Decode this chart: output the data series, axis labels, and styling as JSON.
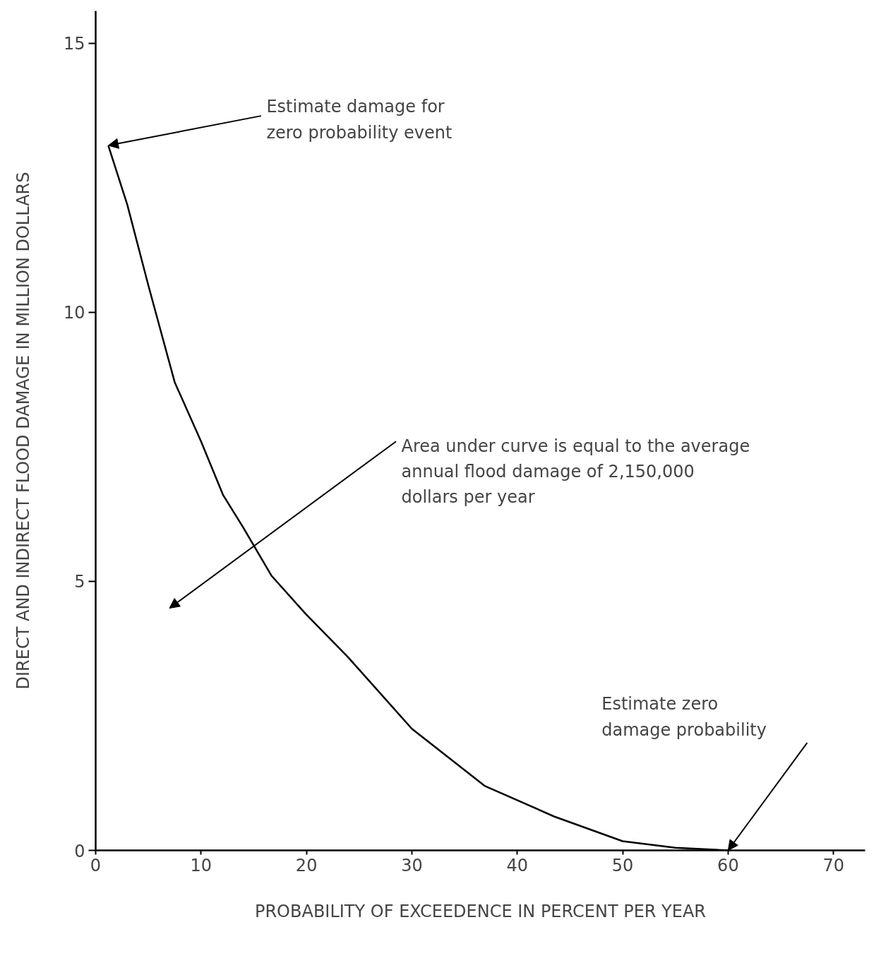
{
  "chart_data": {
    "type": "line",
    "xlabel": "PROBABILITY OF EXCEEDENCE IN PERCENT PER YEAR",
    "ylabel": "DIRECT AND INDIRECT FLOOD DAMAGE IN MILLION DOLLARS",
    "x": [
      1.2,
      3,
      5,
      7.5,
      10,
      12.1,
      14,
      16.7,
      19.9,
      23.9,
      30,
      36.9,
      43.5,
      50,
      55,
      60
    ],
    "series": [
      {
        "color": "#000000",
        "values": [
          13.1,
          12.0,
          10.5,
          8.7,
          7.6,
          6.6,
          6.0,
          5.1,
          4.4,
          3.6,
          2.26,
          1.2,
          0.63,
          0.17,
          0.05,
          0
        ]
      }
    ],
    "xlim": [
      0,
      73
    ],
    "ylim": [
      0,
      15.6
    ],
    "xticks": [
      0,
      10,
      20,
      30,
      40,
      50,
      60,
      70
    ],
    "yticks": [
      0,
      5,
      10,
      15
    ],
    "grid": false,
    "marker": "none",
    "line_style": "solid",
    "annotations": [
      {
        "text": "Estimate damage for\nzero probability event",
        "x": 1.2,
        "y": 13.1
      },
      "Area under curve is equal to the average\nannual flood damage of 2,150,000\ndollars per year",
      "Estimate zero\ndamage probability"
    ]
  }
}
